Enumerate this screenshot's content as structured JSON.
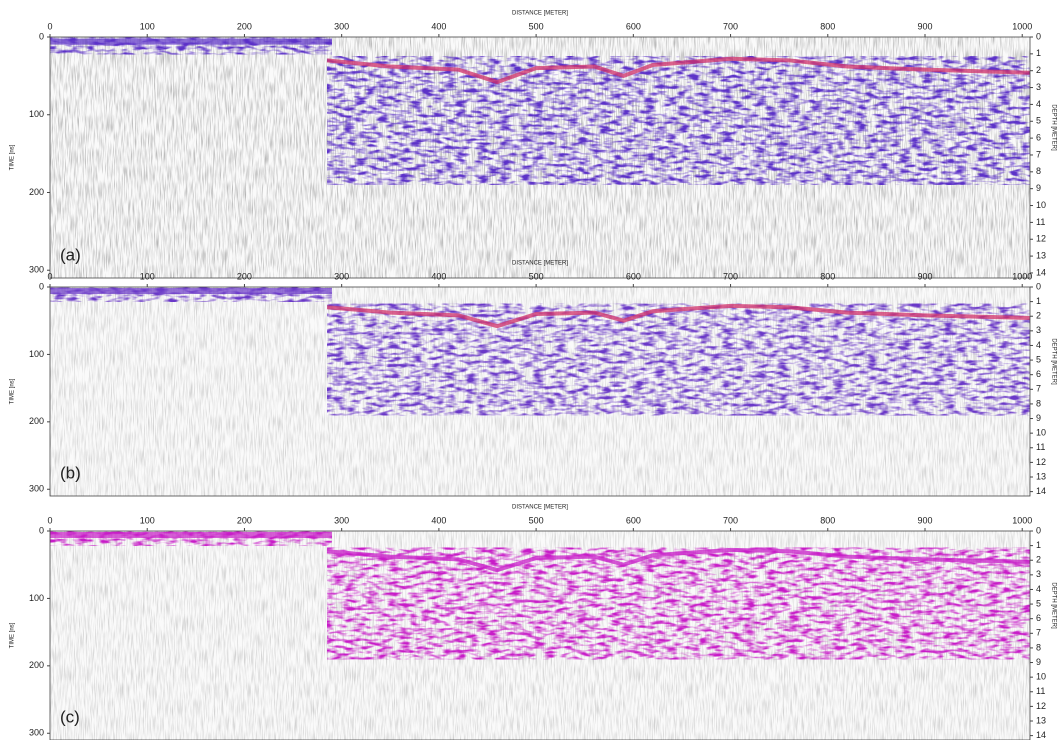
{
  "chart_data": [
    {
      "type": "radargram",
      "panel_label": "(a)",
      "xlabel": "DISTANCE [METER]",
      "ylabel": "TIME [ns]",
      "y2label": "DEPTH [METER]",
      "xlim": [
        0,
        1008
      ],
      "xticks": [
        0,
        100,
        200,
        300,
        400,
        500,
        600,
        700,
        800,
        900,
        1000
      ],
      "ylim": [
        0,
        310
      ],
      "yticks": [
        0,
        100,
        200,
        300
      ],
      "y2lim": [
        0,
        14.3
      ],
      "y2ticks": [
        0,
        1,
        2,
        3,
        4,
        5,
        6,
        7,
        8,
        9,
        10,
        11,
        12,
        13,
        14
      ],
      "color": "#5b30c8"
    },
    {
      "type": "radargram",
      "panel_label": "(b)",
      "xlabel": "DISTANCE [METER]",
      "ylabel": "TIME [ns]",
      "y2label": "DEPTH [METER]",
      "xlim": [
        0,
        1008
      ],
      "xticks": [
        0,
        100,
        200,
        300,
        400,
        500,
        600,
        700,
        800,
        900,
        1000
      ],
      "ylim": [
        0,
        310
      ],
      "yticks": [
        0,
        100,
        200,
        300
      ],
      "y2lim": [
        0,
        14.3
      ],
      "y2ticks": [
        0,
        1,
        2,
        3,
        4,
        5,
        6,
        7,
        8,
        9,
        10,
        11,
        12,
        13,
        14
      ],
      "color": "#6a38c8"
    },
    {
      "type": "radargram",
      "panel_label": "(c)",
      "xlabel": "DISTANCE [METER]",
      "ylabel": "TIME [ns]",
      "y2label": "DEPTH [METER]",
      "xlim": [
        0,
        1008
      ],
      "xticks": [
        0,
        100,
        200,
        300,
        400,
        500,
        600,
        700,
        800,
        900,
        1000
      ],
      "ylim": [
        0,
        310
      ],
      "yticks": [
        0,
        100,
        200,
        300
      ],
      "y2lim": [
        0,
        14.3
      ],
      "y2ticks": [
        0,
        1,
        2,
        3,
        4,
        5,
        6,
        7,
        8,
        9,
        10,
        11,
        12,
        13,
        14
      ],
      "color": "#c81ec8"
    }
  ]
}
